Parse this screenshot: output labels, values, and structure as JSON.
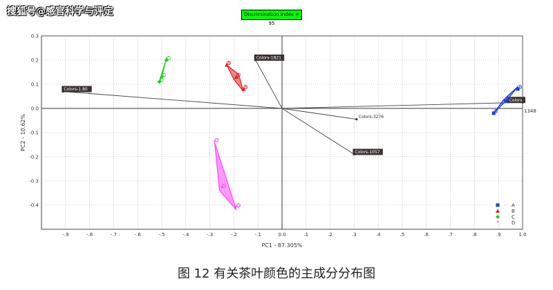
{
  "watermark": "搜狐号@感官科学与评定",
  "discrimination_label": "Discrimination index = 95",
  "caption": "图 12 有关茶叶颜色的主成分分布图",
  "chart_data": {
    "type": "scatter",
    "title": "",
    "xlabel": "PC1 - 87.305%",
    "ylabel": "PC2 - 10.62%",
    "xlim": [
      -1.0,
      1.0
    ],
    "ylim": [
      -0.5,
      0.3
    ],
    "x_ticks": [
      -0.9,
      -0.8,
      -0.7,
      -0.6,
      -0.5,
      -0.4,
      -0.3,
      -0.2,
      -0.1,
      0.0,
      0.1,
      0.2,
      0.3,
      0.4,
      0.5,
      0.6,
      0.7,
      0.8,
      0.9,
      1.0
    ],
    "y_ticks": [
      0.3,
      0.2,
      0.1,
      0.0,
      -0.1,
      -0.2,
      -0.3,
      -0.4
    ],
    "grid": true,
    "legend_position": "bottom-right",
    "series": [
      {
        "name": "A",
        "color": "#1f3fd6",
        "marker": "square",
        "points": [
          [
            0.88,
            -0.02
          ],
          [
            0.93,
            0.03
          ],
          [
            0.98,
            0.08
          ]
        ],
        "hull": [
          [
            0.88,
            -0.02
          ],
          [
            0.92,
            0.035
          ],
          [
            0.98,
            0.09
          ],
          [
            0.94,
            0.04
          ]
        ],
        "labels": [
          "A",
          "A",
          "A"
        ]
      },
      {
        "name": "B",
        "color": "#e02020",
        "marker": "triangle",
        "points": [
          [
            -0.23,
            0.18
          ],
          [
            -0.19,
            0.13
          ],
          [
            -0.16,
            0.08
          ]
        ],
        "hull": [
          [
            -0.23,
            0.18
          ],
          [
            -0.18,
            0.14
          ],
          [
            -0.16,
            0.07
          ],
          [
            -0.2,
            0.12
          ]
        ],
        "labels": [
          "B",
          "B",
          "B"
        ]
      },
      {
        "name": "C",
        "color": "#20d020",
        "marker": "diamond",
        "points": [
          [
            -0.51,
            0.11
          ],
          [
            -0.5,
            0.13
          ],
          [
            -0.48,
            0.2
          ]
        ],
        "hull": [
          [
            -0.51,
            0.11
          ],
          [
            -0.48,
            0.21
          ],
          [
            -0.5,
            0.13
          ]
        ],
        "labels": [
          "C",
          "C",
          "C"
        ]
      },
      {
        "name": "D",
        "color": "#ff44ff",
        "marker": "star",
        "points": [
          [
            -0.28,
            -0.14
          ],
          [
            -0.25,
            -0.33
          ],
          [
            -0.19,
            -0.41
          ]
        ],
        "hull": [
          [
            -0.28,
            -0.14
          ],
          [
            -0.19,
            -0.42
          ],
          [
            -0.26,
            -0.34
          ]
        ],
        "labels": [
          "D",
          "D",
          "D"
        ]
      }
    ],
    "variables": [
      {
        "label": "Colors-1.80",
        "x": -0.91,
        "y": 0.07
      },
      {
        "label": "Colors-1821",
        "x": -0.11,
        "y": 0.2
      },
      {
        "label": "Colors",
        "x": 1.0,
        "y": 0.025
      },
      {
        "label": "Colors-3276",
        "x": 0.31,
        "y": -0.045
      },
      {
        "label": "Colors-1057",
        "x": 0.3,
        "y": -0.19
      }
    ],
    "edge_label": "1348"
  }
}
